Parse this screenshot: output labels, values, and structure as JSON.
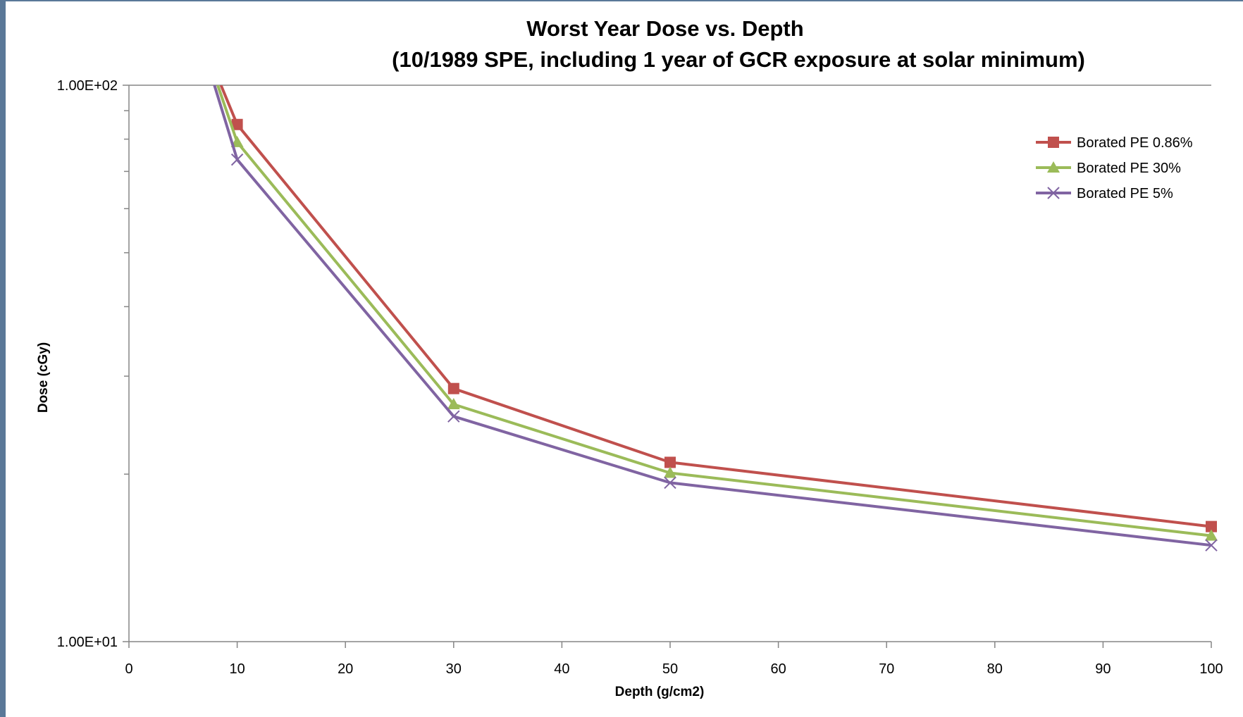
{
  "chart_data": {
    "type": "line",
    "title": "Worst Year Dose vs. Depth",
    "subtitle": "(10/1989 SPE, including 1 year of GCR exposure at solar minimum)",
    "xlabel": "Depth (g/cm2)",
    "ylabel": "Dose (cGy)",
    "xlim": [
      0,
      100
    ],
    "ylim": [
      10,
      100
    ],
    "y_scale": "log",
    "x_ticks": [
      "0",
      "10",
      "20",
      "30",
      "40",
      "50",
      "60",
      "70",
      "80",
      "90",
      "100"
    ],
    "y_ticks": [
      "1.00E+01",
      "1.00E+02"
    ],
    "grid": false,
    "legend_position": "top-right",
    "series": [
      {
        "name": "Borated PE 0.86%",
        "color": "#c0504d",
        "marker": "square",
        "x": [
          8.5,
          10,
          30,
          50,
          100
        ],
        "y": [
          100,
          85,
          28.5,
          21,
          16.1
        ]
      },
      {
        "name": "Borated PE 30%",
        "color": "#9bbb59",
        "marker": "triangle",
        "x": [
          8.2,
          10,
          30,
          50,
          100
        ],
        "y": [
          100,
          79,
          26.7,
          20.1,
          15.5
        ]
      },
      {
        "name": "Borated PE 5%",
        "color": "#8064a2",
        "marker": "x",
        "x": [
          7.9,
          10,
          30,
          50,
          100
        ],
        "y": [
          100,
          73.5,
          25.4,
          19.3,
          14.9
        ]
      }
    ]
  }
}
